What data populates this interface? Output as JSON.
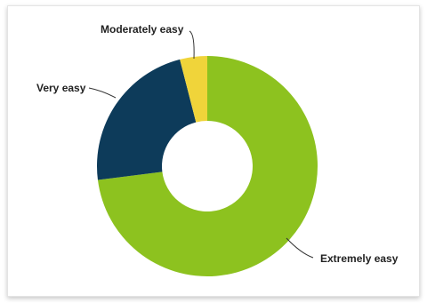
{
  "chart_data": {
    "type": "pie",
    "donut": true,
    "title": "",
    "categories": [
      "Extremely easy",
      "Very easy",
      "Moderately easy"
    ],
    "values": [
      73,
      23,
      4
    ],
    "colors": [
      "#8dc21f",
      "#0d3b5a",
      "#f0d43a"
    ],
    "legend": "none"
  }
}
